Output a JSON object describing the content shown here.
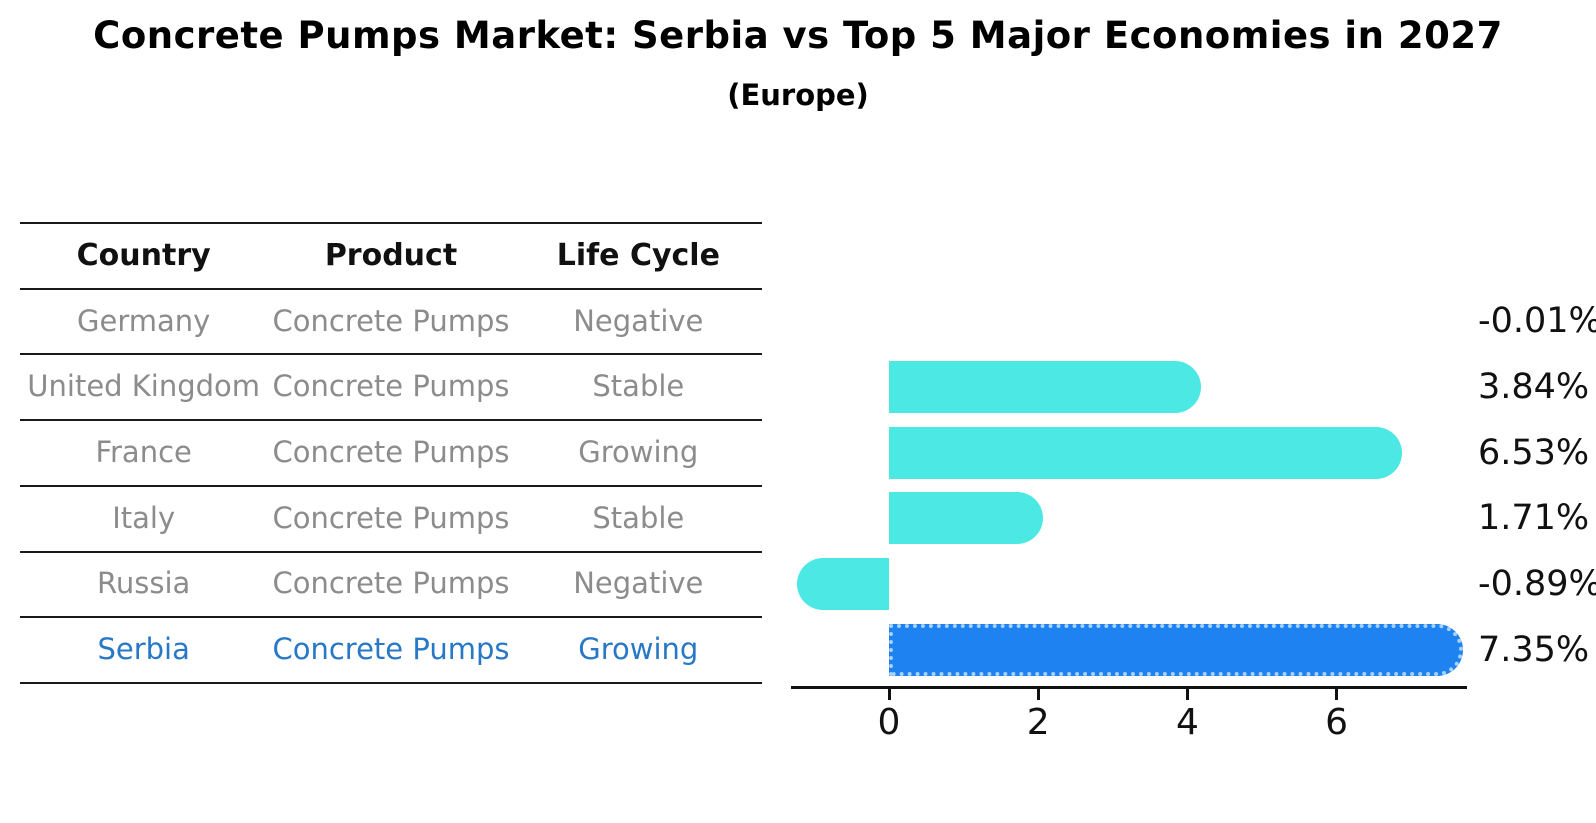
{
  "title": "Concrete Pumps Market: Serbia vs Top 5 Major Economies in 2027",
  "subtitle": "(Europe)",
  "table": {
    "headers": [
      "Country",
      "Product",
      "Life Cycle"
    ],
    "rows": [
      {
        "country": "Germany",
        "product": "Concrete Pumps",
        "life_cycle": "Negative",
        "highlighted": false
      },
      {
        "country": "United Kingdom",
        "product": "Concrete Pumps",
        "life_cycle": "Stable",
        "highlighted": false
      },
      {
        "country": "France",
        "product": "Concrete Pumps",
        "life_cycle": "Growing",
        "highlighted": false
      },
      {
        "country": "Italy",
        "product": "Concrete Pumps",
        "life_cycle": "Stable",
        "highlighted": false
      },
      {
        "country": "Russia",
        "product": "Concrete Pumps",
        "life_cycle": "Negative",
        "highlighted": false
      },
      {
        "country": "Serbia",
        "product": "Concrete Pumps",
        "life_cycle": "Growing",
        "highlighted": true
      }
    ]
  },
  "chart_data": {
    "type": "bar",
    "orientation": "horizontal",
    "title": "Concrete Pumps Market: Serbia vs Top 5 Major Economies in 2027 (Europe)",
    "categories": [
      "Germany",
      "United Kingdom",
      "France",
      "Italy",
      "Russia",
      "Serbia"
    ],
    "values": [
      -0.01,
      3.84,
      6.53,
      1.71,
      -0.89,
      7.35
    ],
    "value_labels": [
      "-0.01%",
      "3.84%",
      "6.53%",
      "1.71%",
      "-0.89%",
      "7.35%"
    ],
    "x_ticks": [
      0,
      2,
      4,
      6
    ],
    "xlim": [
      -1.31,
      7.75
    ],
    "grid": false,
    "legend": false,
    "bar_color": "#4be8e4",
    "highlight_index": 5,
    "highlight_bar_color": "#1e82f0",
    "highlight_border_color": "#a7d1f8",
    "highlight_border_style": "dotted"
  },
  "colors": {
    "background": "#ffffff",
    "title_text": "#000000",
    "table_line": "#1a1a1a",
    "table_header_text": "#111111",
    "table_row_text": "#8c8c8c",
    "highlight_text": "#2878c8",
    "value_label_text": "#111111",
    "axis": "#111111"
  }
}
